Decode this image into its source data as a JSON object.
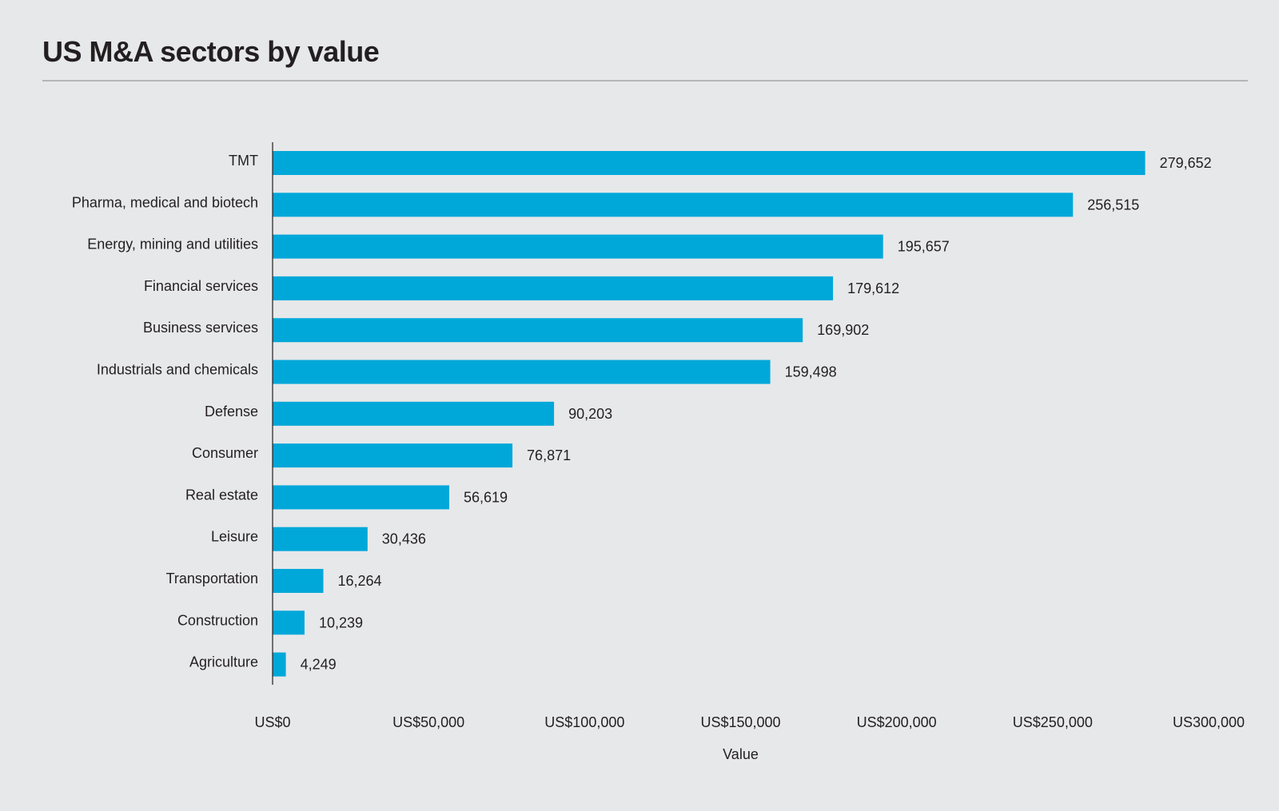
{
  "chart_data": {
    "type": "bar",
    "orientation": "horizontal",
    "title": "US M&A sectors by value",
    "xlabel": "Value",
    "ylabel": "",
    "xlim": [
      0,
      300000
    ],
    "xticks": [
      0,
      50000,
      100000,
      150000,
      200000,
      250000,
      300000
    ],
    "xtick_labels": [
      "US$0",
      "US$50,000",
      "US$100,000",
      "US$150,000",
      "US$200,000",
      "US$250,000",
      "US300,000"
    ],
    "grid": false,
    "categories": [
      "TMT",
      "Pharma, medical and biotech",
      "Energy, mining and utilities",
      "Financial services",
      "Business services",
      "Industrials and chemicals",
      "Defense",
      "Consumer",
      "Real estate",
      "Leisure",
      "Transportation",
      "Construction",
      "Agriculture"
    ],
    "values": [
      279652,
      256515,
      195657,
      179612,
      169902,
      159498,
      90203,
      76871,
      56619,
      30436,
      16264,
      10239,
      4249
    ],
    "data_labels": [
      "279,652",
      "256,515",
      "195,657",
      "179,612",
      "169,902",
      "159,498",
      "90,203",
      "76,871",
      "56,619",
      "30,436",
      "16,264",
      "10,239",
      "4,249"
    ],
    "colors": {
      "bar": "#00a8d9",
      "background": "#e7e8ea",
      "text": "#231f20"
    }
  }
}
